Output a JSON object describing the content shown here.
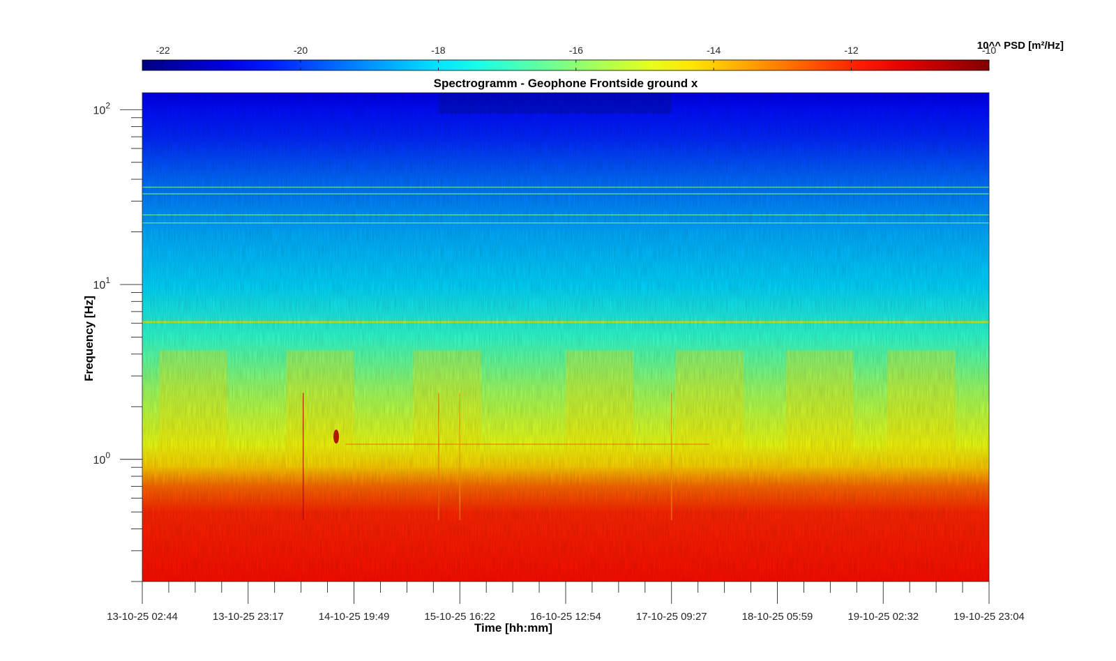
{
  "chart_data": {
    "type": "heatmap",
    "title": "Spectrogramm - Geophone Frontside ground x",
    "xlabel": "Time [hh:mm]",
    "ylabel": "Frequency [Hz]",
    "x_tick_labels": [
      "13-10-25 02:44",
      "13-10-25 23:17",
      "14-10-25 19:49",
      "15-10-25 16:22",
      "16-10-25 12:54",
      "17-10-25 09:27",
      "18-10-25 05:59",
      "19-10-25 02:32",
      "19-10-25 23:04"
    ],
    "x_range": [
      "13-10-25 02:44",
      "19-10-25 23:04"
    ],
    "y_scale": "log",
    "y_range": [
      0.2,
      125
    ],
    "y_tick_values": [
      1,
      10,
      100
    ],
    "colorbar": {
      "label": "10^^ PSD [m²/Hz]",
      "colormap": "jet",
      "range": [
        -22.3,
        -10
      ],
      "tick_values": [
        -22,
        -20,
        -18,
        -16,
        -14,
        -12,
        -10
      ],
      "placement": "top"
    },
    "color_levels": [
      {
        "freq_hz": 125,
        "log10_psd": -21.0
      },
      {
        "freq_hz": 100,
        "log10_psd": -20.6
      },
      {
        "freq_hz": 70,
        "log10_psd": -20.3
      },
      {
        "freq_hz": 40,
        "log10_psd": -19.5
      },
      {
        "freq_hz": 20,
        "log10_psd": -18.7
      },
      {
        "freq_hz": 10,
        "log10_psd": -18.2
      },
      {
        "freq_hz": 5,
        "log10_psd": -17.1
      },
      {
        "freq_hz": 2.5,
        "log10_psd": -15.8
      },
      {
        "freq_hz": 1.2,
        "log10_psd": -14.8
      },
      {
        "freq_hz": 0.9,
        "log10_psd": -14.0
      },
      {
        "freq_hz": 0.7,
        "log10_psd": -12.8
      },
      {
        "freq_hz": 0.5,
        "log10_psd": -12.0
      },
      {
        "freq_hz": 0.2,
        "log10_psd": -11.7
      }
    ],
    "tonal_lines_hz": [
      6.1,
      22.5,
      25,
      33,
      36
    ],
    "grid": false
  }
}
